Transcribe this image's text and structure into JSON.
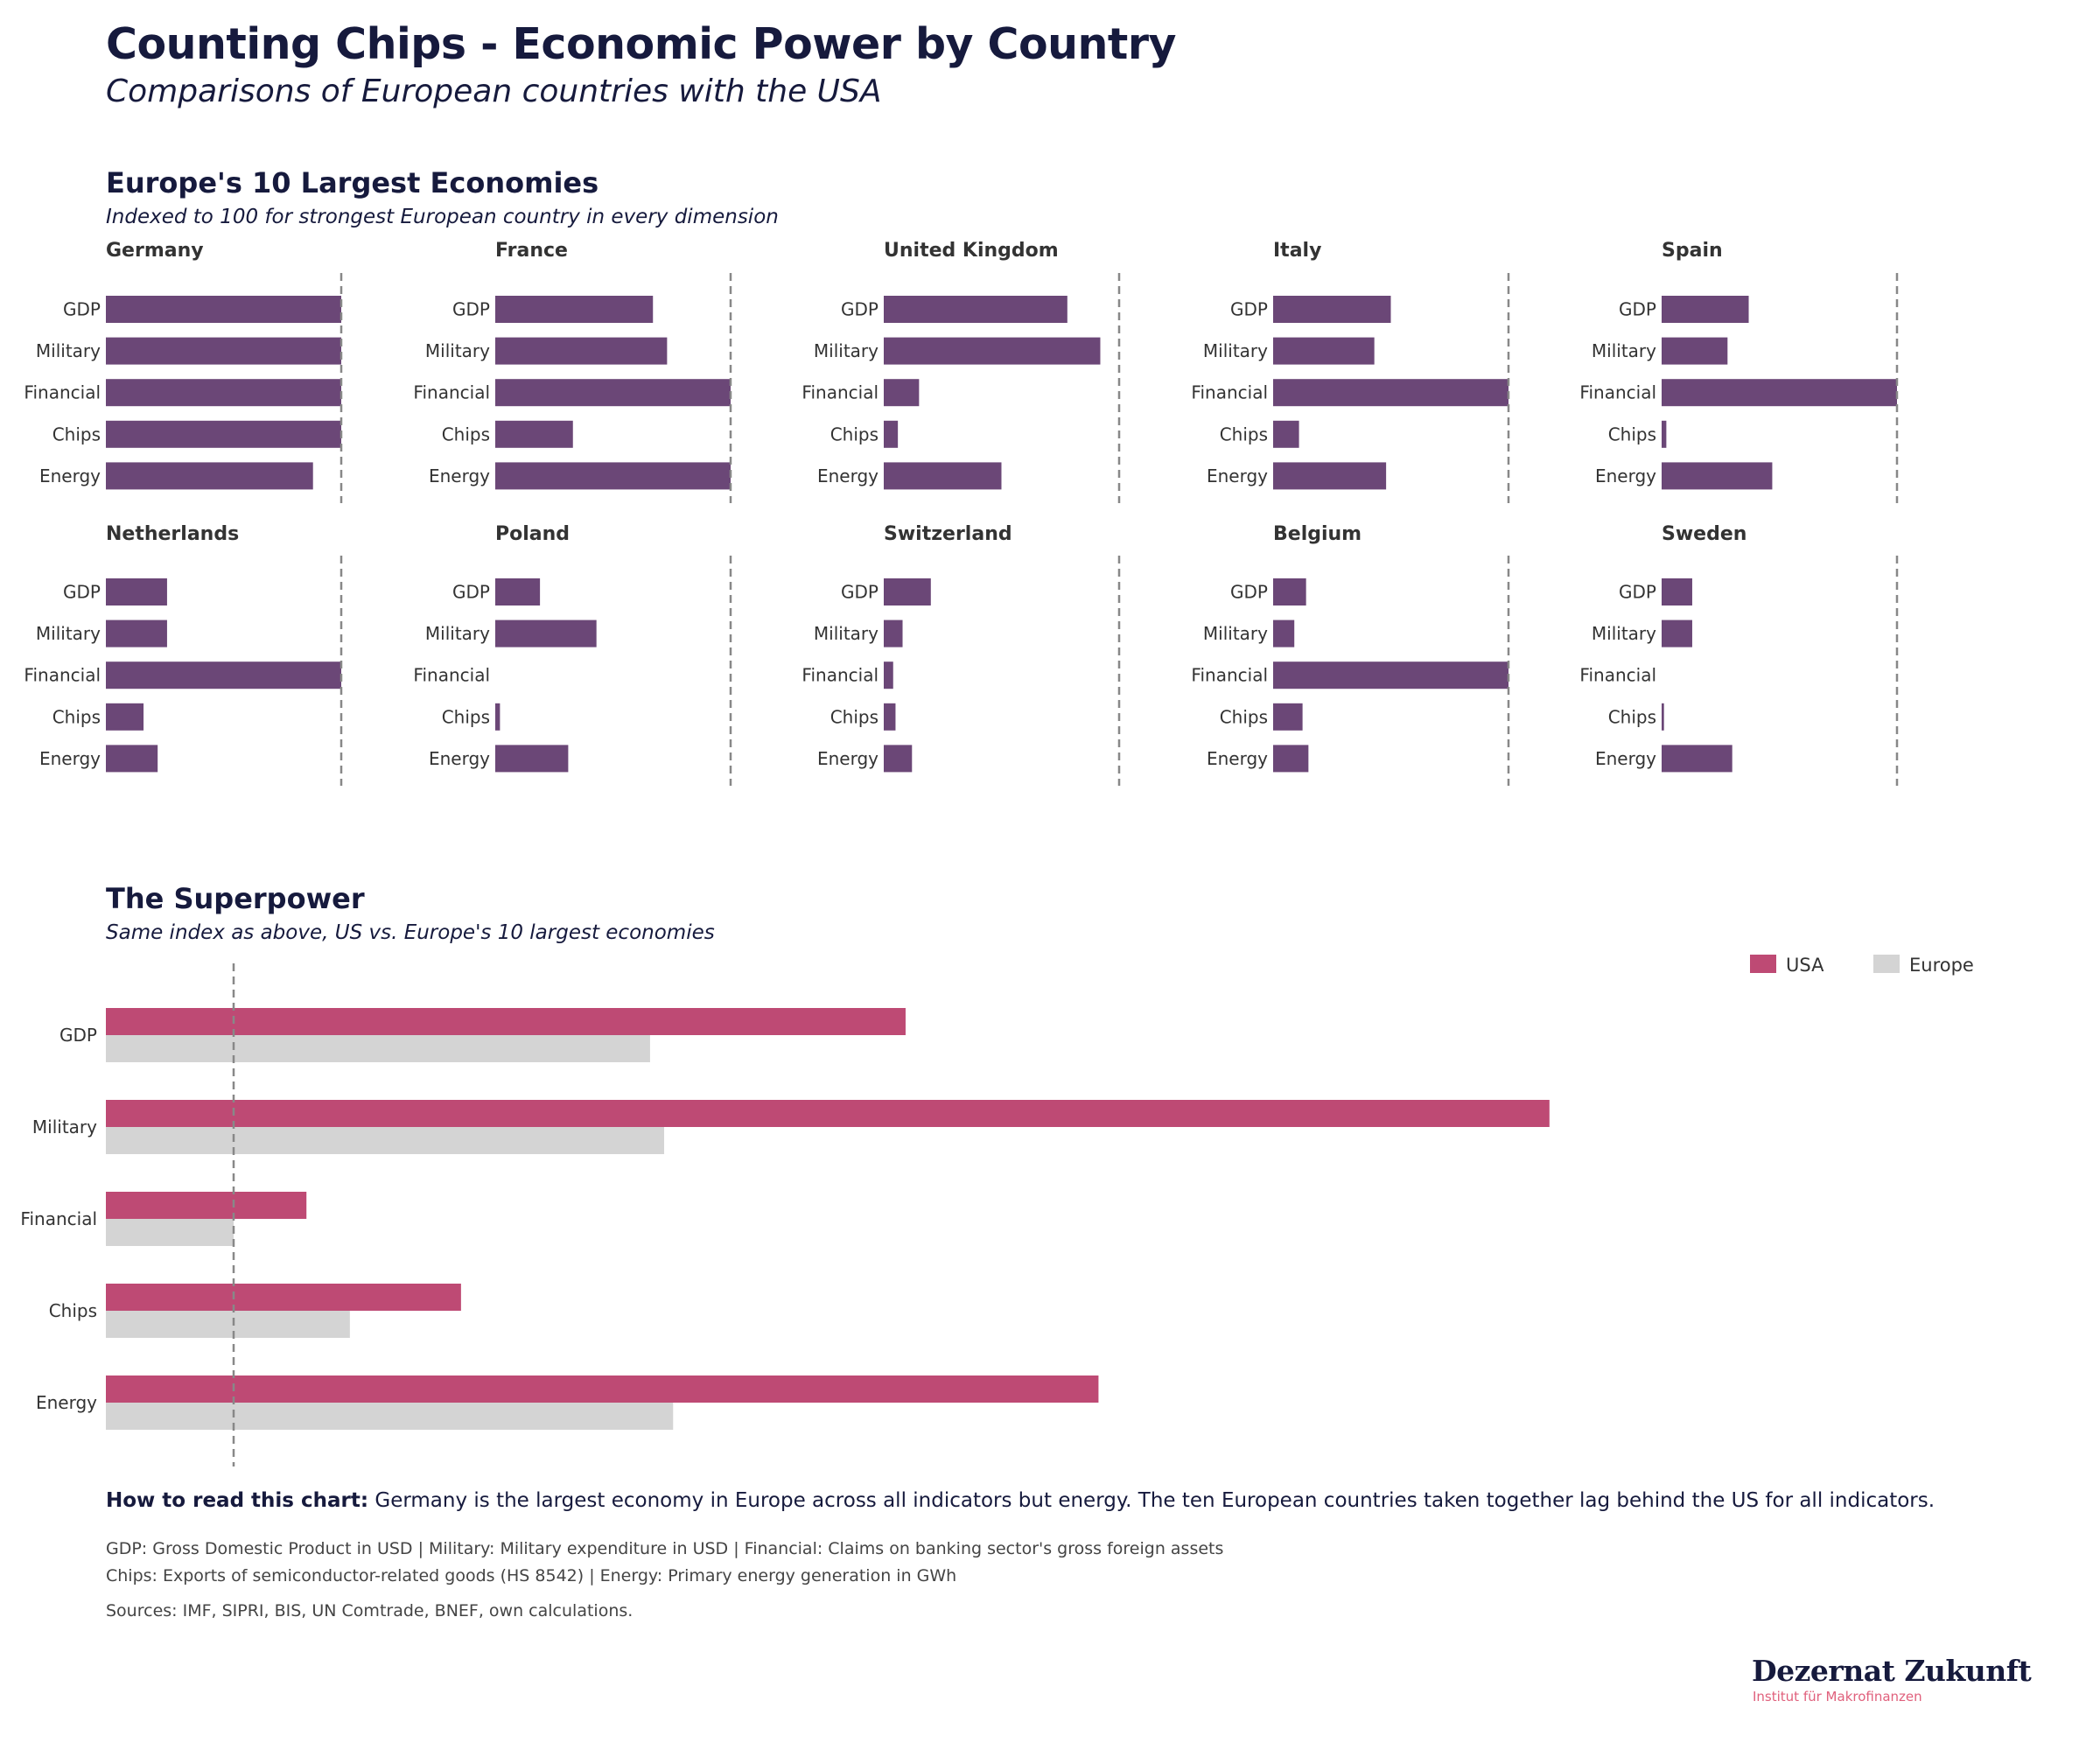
{
  "header": {
    "title": "Counting Chips - Economic Power by Country",
    "subtitle": "Comparisons of European countries with the USA"
  },
  "colors": {
    "europe_bar": "#6b4777",
    "usa": "#be4a74",
    "europe_total": "#d4d4d4",
    "reference_line": "#888888",
    "title_navy": "#161a3d",
    "logo_accent": "#e0607c"
  },
  "chart_data": [
    {
      "type": "bar",
      "orientation": "horizontal",
      "layout": "small-multiples",
      "title": "Europe's 10 Largest Economies",
      "subtitle": "Indexed to 100 for strongest European country in every dimension",
      "categories": [
        "GDP",
        "Military",
        "Financial",
        "Chips",
        "Energy"
      ],
      "xlim": [
        0,
        100
      ],
      "reference_line": 100,
      "grid": false,
      "panels": [
        {
          "name": "Germany",
          "values": [
            100,
            100,
            100,
            100,
            88
          ]
        },
        {
          "name": "France",
          "values": [
            67,
            73,
            100,
            33,
            100
          ]
        },
        {
          "name": "United Kingdom",
          "values": [
            78,
            92,
            15,
            6,
            50
          ]
        },
        {
          "name": "Italy",
          "values": [
            50,
            43,
            100,
            11,
            48
          ]
        },
        {
          "name": "Spain",
          "values": [
            37,
            28,
            100,
            2,
            47
          ]
        },
        {
          "name": "Netherlands",
          "values": [
            26,
            26,
            100,
            16,
            22
          ]
        },
        {
          "name": "Poland",
          "values": [
            19,
            43,
            0,
            2,
            31
          ]
        },
        {
          "name": "Switzerland",
          "values": [
            20,
            8,
            4,
            5,
            12
          ]
        },
        {
          "name": "Belgium",
          "values": [
            14,
            9,
            100,
            12.5,
            15
          ]
        },
        {
          "name": "Sweden",
          "values": [
            13,
            13,
            0,
            1,
            30
          ]
        }
      ]
    },
    {
      "type": "bar",
      "orientation": "horizontal",
      "title": "The Superpower",
      "subtitle": "Same index as above, US vs. Europe's 10 largest economies",
      "categories": [
        "GDP",
        "Military",
        "Financial",
        "Chips",
        "Energy"
      ],
      "series": [
        {
          "name": "USA",
          "values": [
            626,
            1130,
            157,
            278,
            777
          ]
        },
        {
          "name": "Europe",
          "values": [
            426,
            437,
            100,
            191,
            444
          ]
        }
      ],
      "reference_line": 100,
      "xlim": [
        0,
        1200
      ],
      "legend": "top-right",
      "grid": false
    }
  ],
  "footer": {
    "howto_label": "How to read this chart:",
    "howto_text": " Germany is the largest economy in Europe across all indicators but energy. The ten European countries taken together lag behind the US for all indicators.",
    "definitions_line1": "GDP: Gross Domestic Product in USD | Military: Military expenditure in USD | Financial: Claims on banking sector's gross foreign assets",
    "definitions_line2": "Chips: Exports of semiconductor-related goods (HS 8542) | Energy: Primary energy generation in GWh",
    "sources": "Sources: IMF, SIPRI, BIS, UN Comtrade, BNEF, own calculations."
  },
  "logo": {
    "name": "Dezernat Zukunft",
    "tagline": "Institut für Makrofinanzen"
  }
}
